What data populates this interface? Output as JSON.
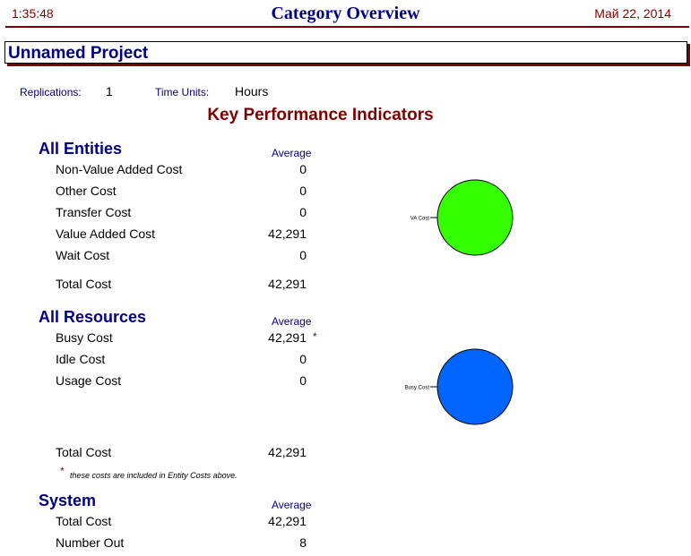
{
  "header": {
    "time": "1:35:48",
    "title": "Category Overview",
    "date": "Май 22, 2014"
  },
  "project": {
    "name": "Unnamed Project"
  },
  "info": {
    "replications_label": "Replications:",
    "replications_value": "1",
    "time_units_label": "Time Units:",
    "time_units_value": "Hours"
  },
  "kpi_title": "Key Performance Indicators",
  "entities": {
    "title": "All Entities",
    "avg_label": "Average",
    "rows": [
      {
        "label": "Non-Value Added Cost",
        "value": "0"
      },
      {
        "label": "Other Cost",
        "value": "0"
      },
      {
        "label": "Transfer Cost",
        "value": "0"
      },
      {
        "label": "Value Added Cost",
        "value": "42,291"
      },
      {
        "label": "Wait Cost",
        "value": "0"
      }
    ],
    "total_label": "Total Cost",
    "total_value": "42,291",
    "pie_label": "VA Cost",
    "pie_color": "#33ff00"
  },
  "resources": {
    "title": "All Resources",
    "avg_label": "Average",
    "rows": [
      {
        "label": "Busy Cost",
        "value": "42,291",
        "mark": "*"
      },
      {
        "label": "Idle Cost",
        "value": "0"
      },
      {
        "label": "Usage Cost",
        "value": "0"
      }
    ],
    "total_label": "Total Cost",
    "total_value": "42,291",
    "note_mark": "*",
    "note": "these costs are included in Entity Costs above.",
    "pie_label": "Busy Cost",
    "pie_color": "#0066ff"
  },
  "system": {
    "title": "System",
    "avg_label": "Average",
    "rows": [
      {
        "label": "Total Cost",
        "value": "42,291"
      },
      {
        "label": "Number Out",
        "value": "8"
      }
    ]
  }
}
